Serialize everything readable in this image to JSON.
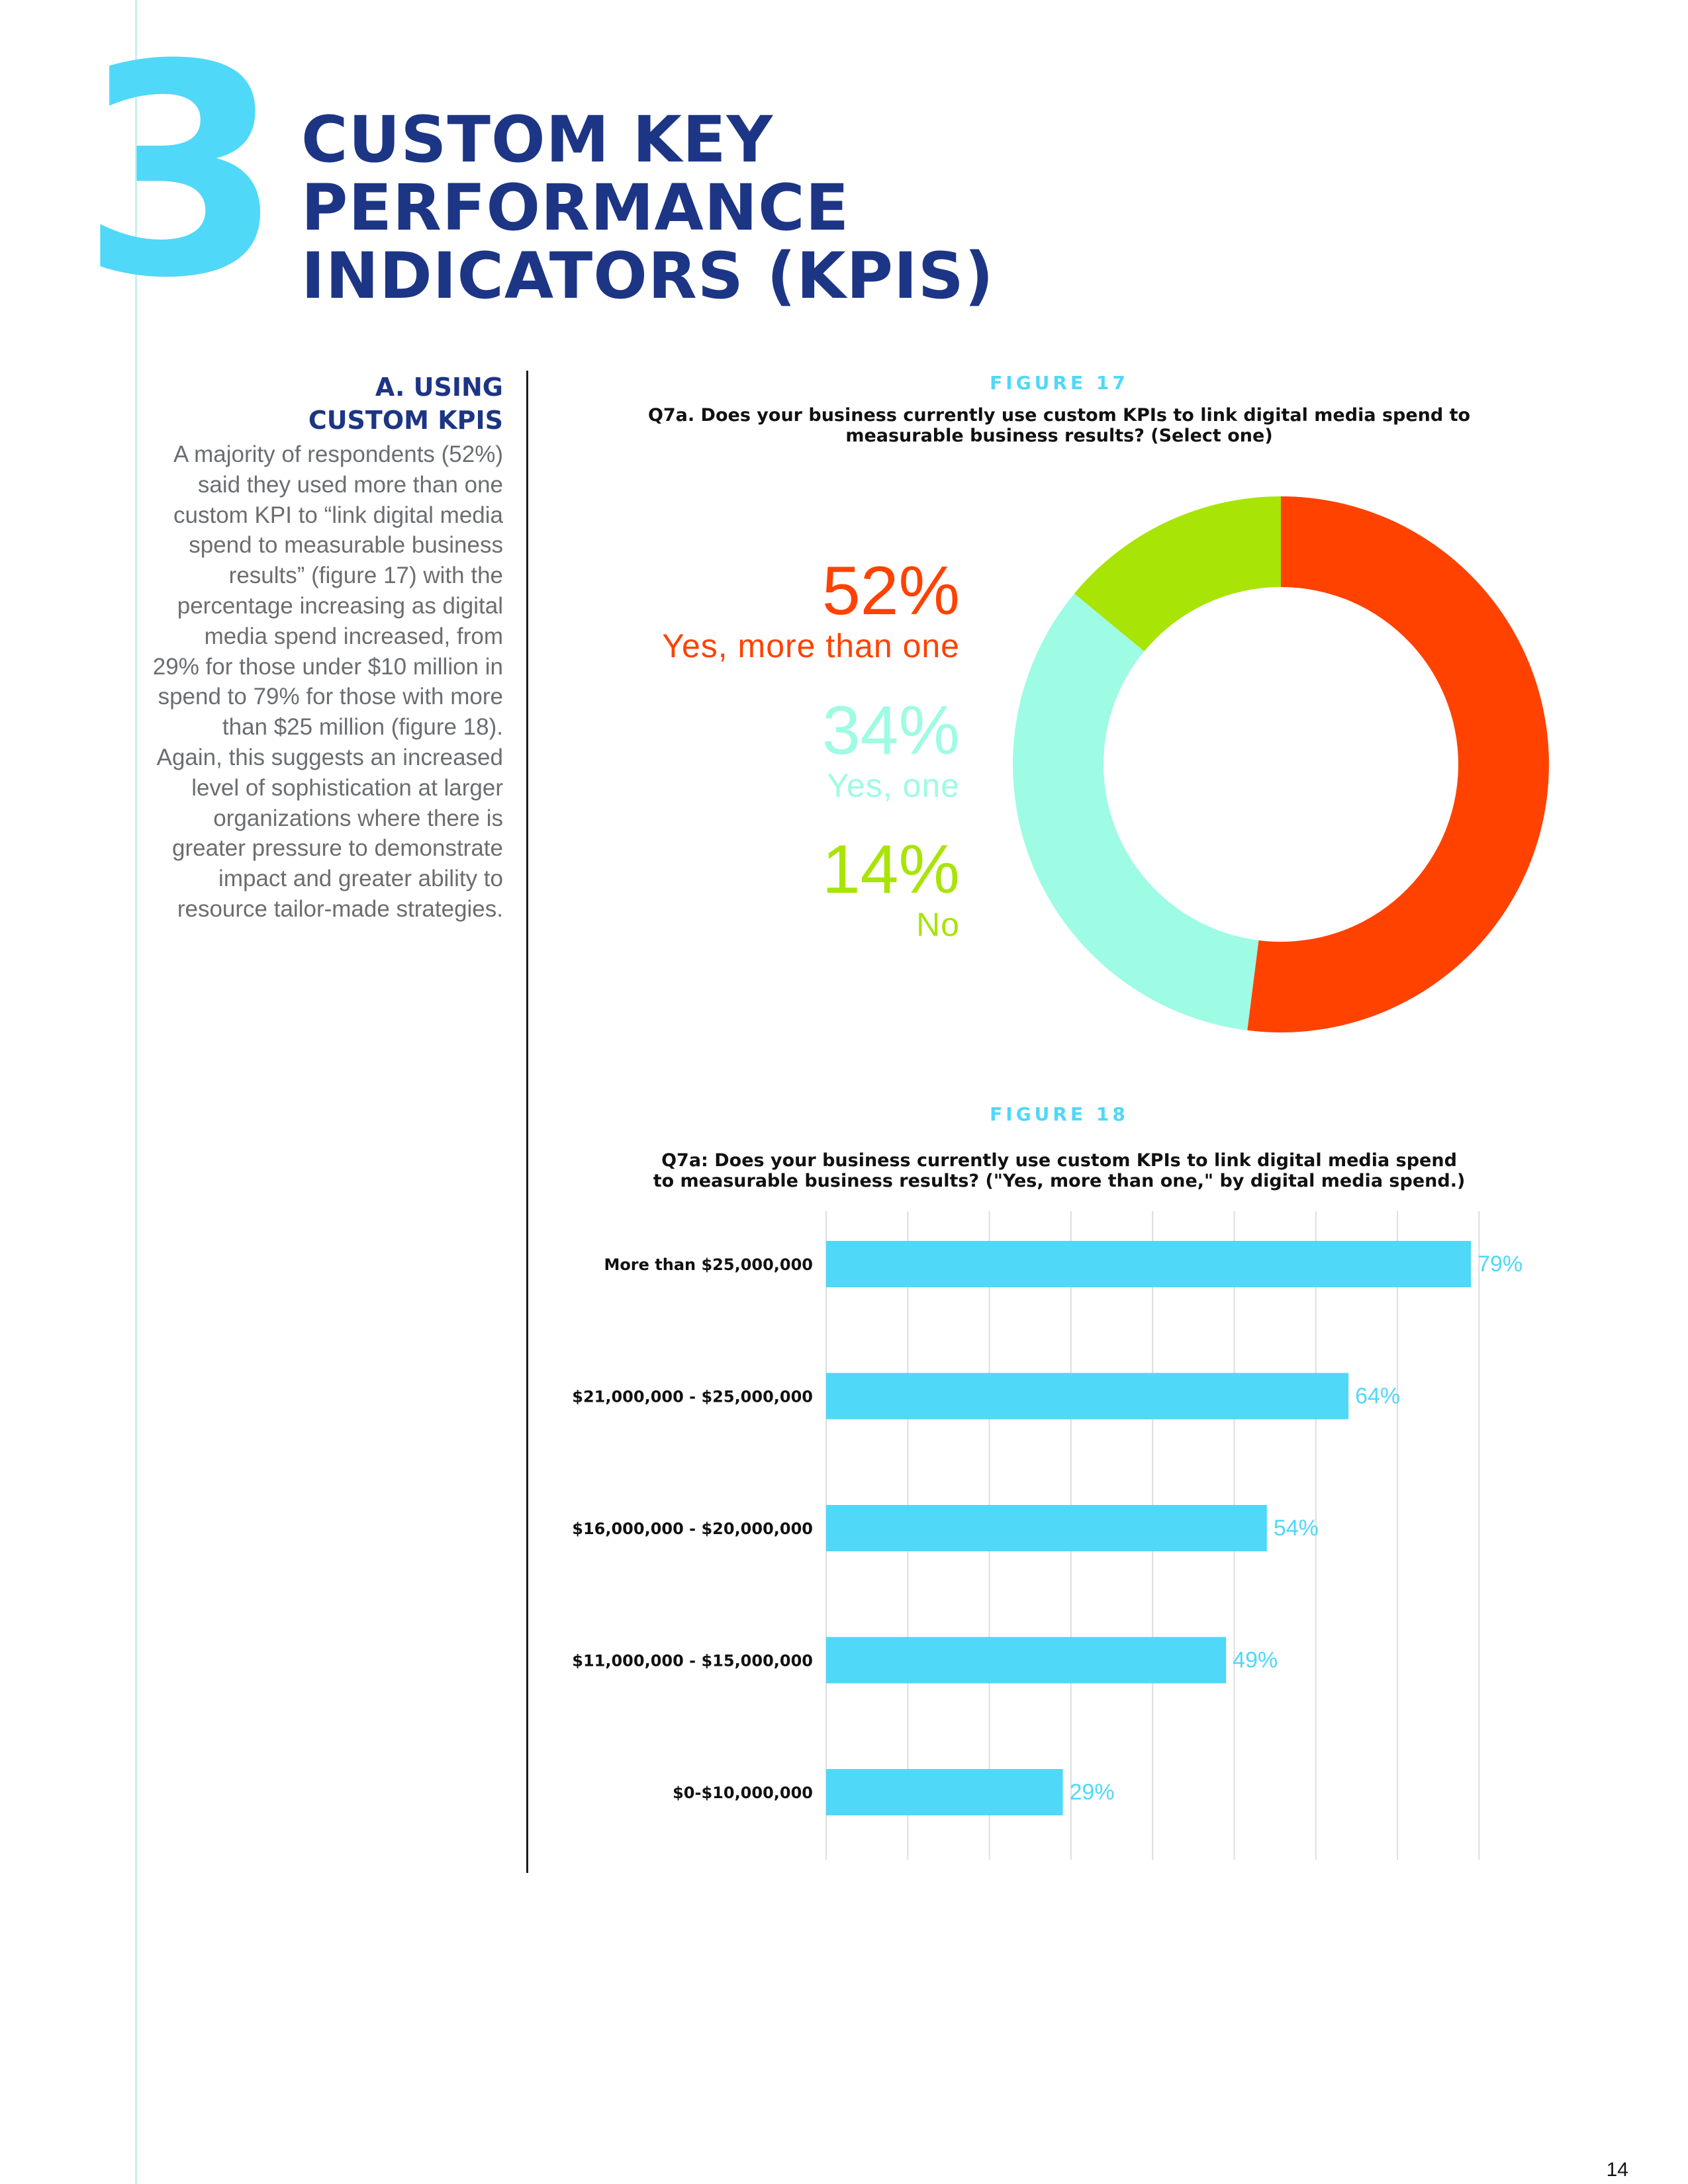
{
  "section": {
    "number": "3",
    "title_lines": [
      "CUSTOM KEY",
      "PERFORMANCE",
      "INDICATORS (KPIS)"
    ]
  },
  "sidebar": {
    "heading_lines": [
      "A. USING",
      "CUSTOM KPIS"
    ],
    "body": "A majority of respondents (52%) said they used more than one custom KPI to “link digital media spend to measurable business results” (figure 17) with the percentage increasing as digital media spend increased, from 29% for those under $10 million in spend to 79% for those with more than $25 million (figure 18). Again, this suggests an increased level of sophistication at larger organizations where there is greater pressure to demonstrate impact and greater ability to resource tailor-made strategies."
  },
  "figure17": {
    "label": "FIGURE 17",
    "question_lines": [
      "Q7a. Does your business currently use custom KPIs to link digital media spend to",
      "measurable business results? (Select one)"
    ]
  },
  "figure18": {
    "label": "FIGURE 18",
    "question_lines": [
      "Q7a: Does your business currently use custom KPIs to link digital media spend",
      "to measurable business results?  (\"Yes, more than one,\" by digital media spend.)"
    ]
  },
  "chart_data": [
    {
      "type": "pie",
      "style": "donut",
      "categories": [
        "Yes, more than one",
        "Yes, one",
        "No"
      ],
      "values": [
        52,
        34,
        14
      ],
      "value_labels": [
        "52%",
        "34%",
        "14%"
      ],
      "colors": [
        "#ff4200",
        "#9efbe4",
        "#a8e406"
      ]
    },
    {
      "type": "bar",
      "orientation": "horizontal",
      "categories": [
        "More than $25,000,000",
        "$21,000,000 - $25,000,000",
        "$16,000,000 - $20,000,000",
        "$11,000,000 - $15,000,000",
        "$0-$10,000,000"
      ],
      "values": [
        79,
        64,
        54,
        49,
        29
      ],
      "value_labels": [
        "79%",
        "64%",
        "54%",
        "49%",
        "29%"
      ],
      "xlim": [
        0,
        80
      ],
      "grid": true,
      "color": "#4fd8f8"
    }
  ],
  "page": {
    "number": "14"
  }
}
